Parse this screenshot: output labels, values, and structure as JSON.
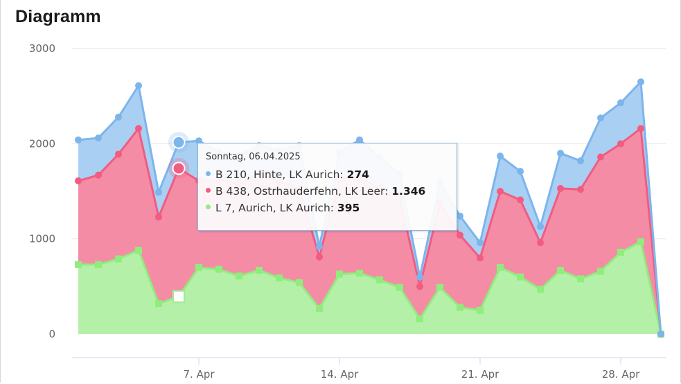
{
  "page": {
    "title": "Diagramm"
  },
  "chart_data": {
    "type": "area",
    "stacked": true,
    "title": "Diagramm",
    "xlabel": "",
    "ylabel": "",
    "ylim": [
      0,
      3000
    ],
    "y_ticks": [
      0,
      1000,
      2000,
      3000
    ],
    "grid": "horizontal",
    "x_start": "2025-04-01",
    "x_tick_labels": [
      {
        "label": "7. Apr",
        "date": "2025-04-07"
      },
      {
        "label": "14. Apr",
        "date": "2025-04-14"
      },
      {
        "label": "21. Apr",
        "date": "2025-04-21"
      },
      {
        "label": "28. Apr",
        "date": "2025-04-28"
      }
    ],
    "series": [
      {
        "name": "L 7, Aurich, LK Aurich",
        "color": "#90ed7d",
        "fill": "#b5f0a9",
        "marker": "square",
        "values": [
          730,
          730,
          790,
          880,
          320,
          395,
          700,
          680,
          610,
          670,
          590,
          540,
          270,
          630,
          640,
          570,
          490,
          160,
          490,
          280,
          250,
          700,
          600,
          470,
          670,
          580,
          660,
          860,
          970,
          0
        ]
      },
      {
        "name": "B 438, Ostrhauderfehn, LK Leer",
        "color": "#f15c80",
        "fill": "#f48ca6",
        "marker": "circle",
        "values": [
          880,
          940,
          1100,
          1280,
          910,
          1346,
          910,
          940,
          970,
          1010,
          1010,
          990,
          540,
          1010,
          1000,
          960,
          940,
          340,
          890,
          760,
          550,
          800,
          810,
          490,
          860,
          940,
          1200,
          1140,
          1190,
          0
        ]
      },
      {
        "name": "B 210, Hinte, LK Aurich",
        "color": "#7cb5ec",
        "fill": "#a9cff3",
        "marker": "circle",
        "values": [
          430,
          390,
          390,
          450,
          260,
          274,
          420,
          290,
          300,
          300,
          330,
          450,
          110,
          270,
          400,
          330,
          250,
          100,
          210,
          200,
          160,
          370,
          300,
          170,
          370,
          300,
          410,
          430,
          490,
          0
        ]
      }
    ],
    "tooltip": {
      "header": "Sonntag, 06.04.2025",
      "rows": [
        {
          "name": "B 210, Hinte, LK Aurich",
          "value": "274",
          "color": "#7cb5ec"
        },
        {
          "name": "B 438, Ostrhauderfehn, LK Leer",
          "value": "1.346",
          "color": "#f15c80"
        },
        {
          "name": "L 7, Aurich, LK Aurich",
          "value": "395",
          "color": "#90ed7d"
        }
      ]
    }
  }
}
